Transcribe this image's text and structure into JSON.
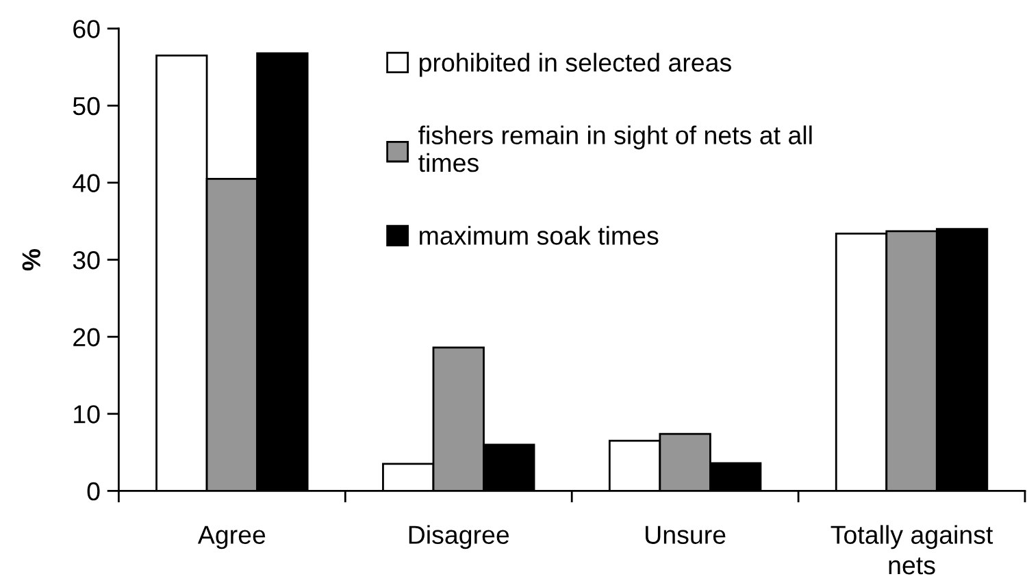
{
  "chart_data": {
    "type": "bar",
    "ylabel": "%",
    "categories": [
      "Agree",
      "Disagree",
      "Unsure",
      "Totally against\nnets"
    ],
    "series": [
      {
        "name": "prohibited in selected areas",
        "color": "#ffffff",
        "values": [
          56.5,
          3.5,
          6.5,
          33.4
        ]
      },
      {
        "name": "fishers remain in sight of nets at all\ntimes",
        "color": "#969696",
        "values": [
          40.5,
          18.6,
          7.4,
          33.7
        ]
      },
      {
        "name": "maximum soak times",
        "color": "#000000",
        "values": [
          56.8,
          6.0,
          3.6,
          34.0
        ]
      }
    ],
    "ylim": [
      0,
      60
    ],
    "yticks": [
      0,
      10,
      20,
      30,
      40,
      50,
      60
    ],
    "grid": false,
    "legend": "top right"
  }
}
